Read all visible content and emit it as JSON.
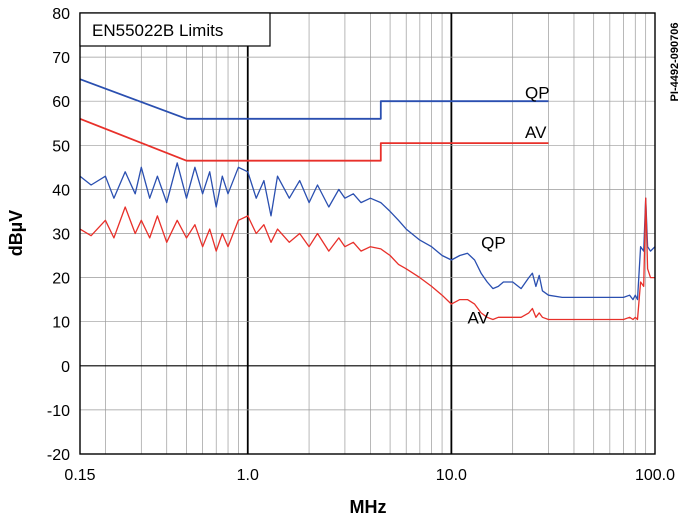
{
  "chart_data": {
    "type": "line",
    "title": "EN55022B Limits",
    "figure_id": "PI-4492-090706",
    "xlabel": "MHz",
    "ylabel": "dBµV",
    "x_scale": "log",
    "xlim": [
      0.15,
      100
    ],
    "ylim": [
      -20,
      80
    ],
    "x_ticks": [
      0.15,
      1.0,
      10.0,
      100.0
    ],
    "x_tick_labels": [
      "0.15",
      "1.0",
      "10.0",
      "100.0"
    ],
    "y_ticks": [
      -20,
      -10,
      0,
      10,
      20,
      30,
      40,
      50,
      60,
      70,
      80
    ],
    "y_tick_labels": [
      "-20",
      "-10",
      "0",
      "10",
      "20",
      "30",
      "40",
      "50",
      "60",
      "70",
      "80"
    ],
    "grid": true,
    "series": [
      {
        "name": "QP",
        "kind": "limit",
        "color": "#2a4fb0",
        "x": [
          0.15,
          0.5,
          4.5,
          4.5,
          30
        ],
        "y": [
          65,
          56,
          56,
          60,
          60
        ]
      },
      {
        "name": "AV",
        "kind": "limit",
        "color": "#e8302a",
        "x": [
          0.15,
          0.5,
          4.5,
          4.5,
          30
        ],
        "y": [
          56,
          46.5,
          46.5,
          50.5,
          50.5
        ]
      },
      {
        "name": "QP",
        "kind": "measurement",
        "color": "#2a4fb0",
        "x": [
          0.15,
          0.17,
          0.2,
          0.22,
          0.25,
          0.28,
          0.3,
          0.33,
          0.36,
          0.4,
          0.45,
          0.5,
          0.55,
          0.6,
          0.65,
          0.7,
          0.75,
          0.8,
          0.9,
          1.0,
          1.1,
          1.2,
          1.3,
          1.4,
          1.6,
          1.8,
          2.0,
          2.2,
          2.5,
          2.8,
          3.0,
          3.3,
          3.6,
          4.0,
          4.5,
          5.0,
          5.5,
          6.0,
          7.0,
          8.0,
          9.0,
          10.0,
          11.0,
          12.0,
          13.0,
          14.0,
          15.0,
          16.0,
          17.0,
          18.0,
          20.0,
          22.0,
          24.0,
          25.0,
          26.0,
          27.0,
          28.0,
          30.0,
          35.0,
          40.0,
          50.0,
          60.0,
          70.0,
          75.0,
          78.0,
          80.0,
          82.0,
          85.0,
          88.0,
          90.0,
          92.0,
          95.0,
          100.0
        ],
        "y": [
          43,
          41,
          43,
          38,
          44,
          39,
          45,
          38,
          43,
          37,
          46,
          38,
          45,
          39,
          44,
          36,
          43,
          39,
          45,
          44,
          38,
          42,
          34,
          43,
          38,
          42,
          37,
          41,
          36,
          40,
          38,
          39,
          37,
          38,
          37,
          35,
          33,
          31,
          28.5,
          27,
          25,
          24,
          25,
          25.5,
          24,
          21,
          19,
          17.5,
          18,
          19,
          19,
          17.5,
          20,
          21,
          18,
          20.5,
          17,
          16,
          15.5,
          15.5,
          15.5,
          15.5,
          15.5,
          16,
          15,
          16,
          15,
          27,
          26,
          38,
          27,
          26,
          27
        ]
      },
      {
        "name": "AV",
        "kind": "measurement",
        "color": "#e8302a",
        "x": [
          0.15,
          0.17,
          0.2,
          0.22,
          0.25,
          0.28,
          0.3,
          0.33,
          0.36,
          0.4,
          0.45,
          0.5,
          0.55,
          0.6,
          0.65,
          0.7,
          0.75,
          0.8,
          0.9,
          1.0,
          1.1,
          1.2,
          1.3,
          1.4,
          1.6,
          1.8,
          2.0,
          2.2,
          2.5,
          2.8,
          3.0,
          3.3,
          3.6,
          4.0,
          4.5,
          5.0,
          5.5,
          6.0,
          7.0,
          8.0,
          9.0,
          10.0,
          11.0,
          12.0,
          13.0,
          14.0,
          15.0,
          16.0,
          17.0,
          18.0,
          20.0,
          22.0,
          24.0,
          25.0,
          26.0,
          27.0,
          28.0,
          30.0,
          35.0,
          40.0,
          50.0,
          60.0,
          70.0,
          75.0,
          78.0,
          80.0,
          82.0,
          85.0,
          88.0,
          90.0,
          92.0,
          95.0,
          100.0
        ],
        "y": [
          31,
          29.5,
          33,
          29,
          36,
          30,
          33,
          29,
          34,
          28,
          33,
          29,
          32,
          27,
          31,
          26,
          30,
          27,
          33,
          34,
          30,
          32,
          28,
          31,
          28,
          30,
          27,
          30,
          26,
          29,
          27,
          28,
          26,
          27,
          26.5,
          25,
          23,
          22,
          20,
          18,
          16,
          14,
          15,
          15,
          14,
          12,
          11,
          10.5,
          11,
          11,
          11,
          11,
          12,
          13,
          11,
          12,
          11,
          10.5,
          10.5,
          10.5,
          10.5,
          10.5,
          10.5,
          11,
          10.5,
          11,
          10.5,
          19,
          18,
          38,
          22,
          20,
          20
        ]
      }
    ],
    "annotations": [
      {
        "text": "QP",
        "x": 23,
        "y": 62
      },
      {
        "text": "AV",
        "x": 23,
        "y": 53
      },
      {
        "text": "QP",
        "x": 14,
        "y": 28
      },
      {
        "text": "AV",
        "x": 12,
        "y": 11
      }
    ]
  }
}
